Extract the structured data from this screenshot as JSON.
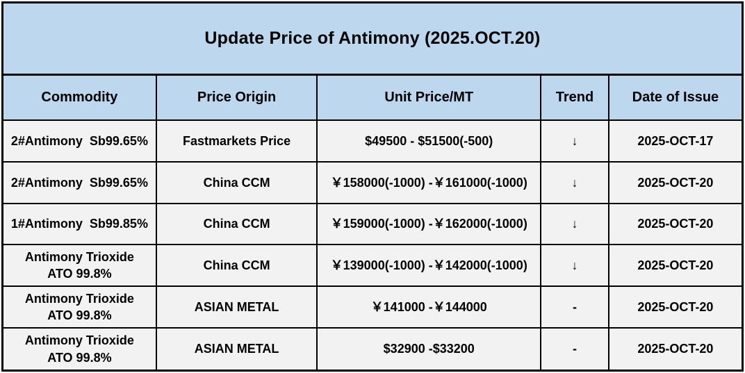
{
  "colors": {
    "header_bg": "#BDD7EE",
    "title_bg": "#BDD7EE",
    "row_bg": "#F2F2F2",
    "border": "#000000",
    "text": "#000000"
  },
  "chart_data": {
    "type": "table",
    "title": "Update Price of Antimony (2025.OCT.20)",
    "columns": [
      "Commodity",
      "Price Origin",
      "Unit Price/MT",
      "Trend",
      "Date of Issue"
    ],
    "rows": [
      {
        "commodity": "2#Antimony  Sb99.65%",
        "price_origin": "Fastmarkets Price",
        "unit_price": "$49500 - $51500(-500)",
        "trend": "↓",
        "date_of_issue": "2025-OCT-17"
      },
      {
        "commodity": "2#Antimony  Sb99.65%",
        "price_origin": "China CCM",
        "unit_price": "￥158000(-1000) -￥161000(-1000)",
        "trend": "↓",
        "date_of_issue": "2025-OCT-20"
      },
      {
        "commodity": "1#Antimony  Sb99.85%",
        "price_origin": "China CCM",
        "unit_price": "￥159000(-1000) -￥162000(-1000)",
        "trend": "↓",
        "date_of_issue": "2025-OCT-20"
      },
      {
        "commodity": "Antimony Trioxide\nATO 99.8%",
        "price_origin": "China CCM",
        "unit_price": "￥139000(-1000) -￥142000(-1000)",
        "trend": "↓",
        "date_of_issue": "2025-OCT-20"
      },
      {
        "commodity": "Antimony Trioxide\nATO 99.8%",
        "price_origin": "ASIAN METAL",
        "unit_price": "￥141000 -￥144000",
        "trend": "-",
        "date_of_issue": "2025-OCT-20"
      },
      {
        "commodity": "Antimony Trioxide\nATO 99.8%",
        "price_origin": "ASIAN METAL",
        "unit_price": "$32900 -$33200",
        "trend": "-",
        "date_of_issue": "2025-OCT-20"
      }
    ]
  }
}
